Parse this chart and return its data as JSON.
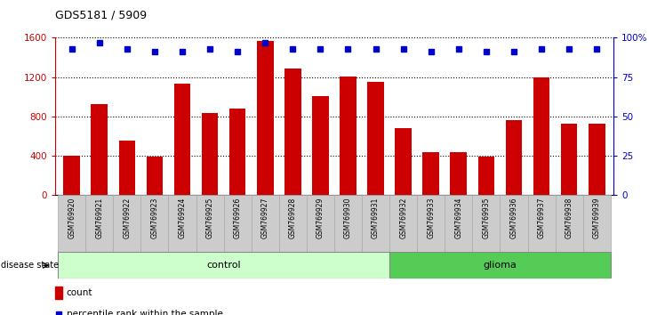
{
  "title": "GDS5181 / 5909",
  "samples": [
    "GSM769920",
    "GSM769921",
    "GSM769922",
    "GSM769923",
    "GSM769924",
    "GSM769925",
    "GSM769926",
    "GSM769927",
    "GSM769928",
    "GSM769929",
    "GSM769930",
    "GSM769931",
    "GSM769932",
    "GSM769933",
    "GSM769934",
    "GSM769935",
    "GSM769936",
    "GSM769937",
    "GSM769938",
    "GSM769939"
  ],
  "counts": [
    400,
    930,
    560,
    390,
    1130,
    840,
    880,
    1570,
    1290,
    1010,
    1210,
    1150,
    680,
    440,
    440,
    395,
    760,
    1200,
    730,
    730
  ],
  "percentiles": [
    93,
    97,
    93,
    91,
    91,
    93,
    91,
    97,
    93,
    93,
    93,
    93,
    93,
    91,
    93,
    91,
    91,
    93,
    93,
    93
  ],
  "control_count": 12,
  "glioma_count": 8,
  "bar_color": "#cc0000",
  "dot_color": "#0000cc",
  "control_bg": "#ccffcc",
  "glioma_bg": "#55cc55",
  "tick_bg": "#cccccc",
  "ylim_left": [
    0,
    1600
  ],
  "ylim_right": [
    0,
    100
  ],
  "yticks_left": [
    0,
    400,
    800,
    1200,
    1600
  ],
  "ytick_labels_left": [
    "0",
    "400",
    "800",
    "1200",
    "1600"
  ],
  "yticks_right": [
    0,
    25,
    50,
    75,
    100
  ],
  "ytick_labels_right": [
    "0",
    "25",
    "50",
    "75",
    "100%"
  ],
  "legend_count_label": "count",
  "legend_pct_label": "percentile rank within the sample",
  "disease_state_label": "disease state",
  "control_label": "control",
  "glioma_label": "glioma"
}
